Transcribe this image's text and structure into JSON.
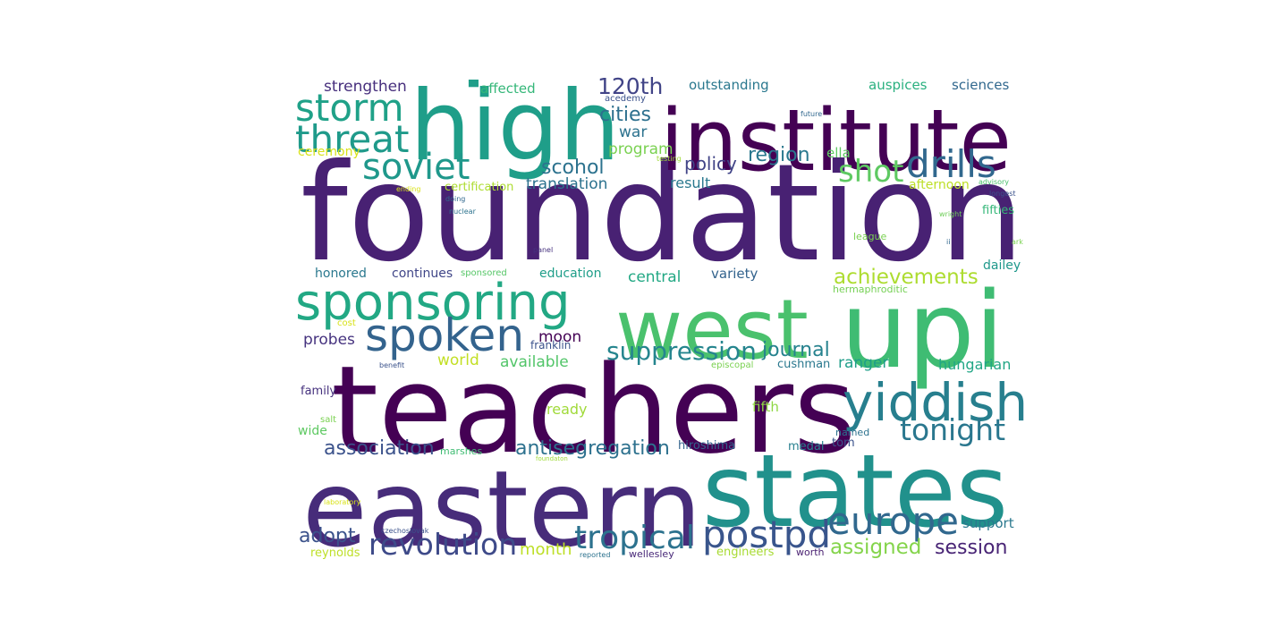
{
  "words": [
    {
      "text": "foundation",
      "color": "#482173"
    },
    {
      "text": "teachers",
      "color": "#440154"
    },
    {
      "text": "eastern",
      "color": "#472c7a"
    },
    {
      "text": "states",
      "color": "#21918c"
    },
    {
      "text": "upi",
      "color": "#3fbc73"
    },
    {
      "text": "west",
      "color": "#4ac16d"
    },
    {
      "text": "institute",
      "color": "#440154"
    },
    {
      "text": "high",
      "color": "#1f9e89"
    },
    {
      "text": "sponsoring",
      "color": "#22a884"
    },
    {
      "text": "yiddish",
      "color": "#277f8e"
    },
    {
      "text": "spoken",
      "color": "#33638d"
    },
    {
      "text": "europe",
      "color": "#31688e"
    },
    {
      "text": "storm",
      "color": "#1fa188"
    },
    {
      "text": "threat",
      "color": "#1f9a8a"
    },
    {
      "text": "drills",
      "color": "#31688e"
    },
    {
      "text": "tropical",
      "color": "#2c728e"
    },
    {
      "text": "postpd",
      "color": "#39558c"
    },
    {
      "text": "soviet",
      "color": "#1f988b"
    },
    {
      "text": "revolution",
      "color": "#3e4a89"
    },
    {
      "text": "tonight",
      "color": "#2a778e"
    },
    {
      "text": "shot",
      "color": "#5ec962"
    },
    {
      "text": "suppression",
      "color": "#25858e"
    },
    {
      "text": "achievements",
      "color": "#addc30"
    },
    {
      "text": "antisegregation",
      "color": "#2d718e"
    },
    {
      "text": "association",
      "color": "#3b528b"
    },
    {
      "text": "120th",
      "color": "#414487"
    },
    {
      "text": "session",
      "color": "#482475"
    },
    {
      "text": "assigned",
      "color": "#84d44b"
    },
    {
      "text": "journal",
      "color": "#26828e"
    },
    {
      "text": "adopt",
      "color": "#3b528b"
    },
    {
      "text": "region",
      "color": "#2a788e"
    },
    {
      "text": "cities",
      "color": "#2d708e"
    },
    {
      "text": "scohol",
      "color": "#2c728e"
    },
    {
      "text": "policy",
      "color": "#414487"
    },
    {
      "text": "month",
      "color": "#bddf26"
    },
    {
      "text": "translation",
      "color": "#2c728e"
    },
    {
      "text": "strengthen",
      "color": "#472f7d"
    },
    {
      "text": "outstanding",
      "color": "#2a788e"
    },
    {
      "text": "auspices",
      "color": "#2ab07f"
    },
    {
      "text": "sciences",
      "color": "#31688e"
    },
    {
      "text": "affected",
      "color": "#35b779"
    },
    {
      "text": "program",
      "color": "#7ad151"
    },
    {
      "text": "moon",
      "color": "#440154"
    },
    {
      "text": "probes",
      "color": "#46337f"
    },
    {
      "text": "hungarian",
      "color": "#21a685"
    },
    {
      "text": "ranger",
      "color": "#1f9e89"
    },
    {
      "text": "world",
      "color": "#c2df23"
    },
    {
      "text": "available",
      "color": "#52c569"
    },
    {
      "text": "ready",
      "color": "#a0da39"
    },
    {
      "text": "war",
      "color": "#2c728e"
    },
    {
      "text": "ella",
      "color": "#5ec962"
    },
    {
      "text": "result",
      "color": "#2a788e"
    },
    {
      "text": "central",
      "color": "#22a884"
    },
    {
      "text": "variety",
      "color": "#33638d"
    },
    {
      "text": "support",
      "color": "#2a788e"
    },
    {
      "text": "dailey",
      "color": "#1f988b"
    },
    {
      "text": "fifties",
      "color": "#35b779"
    },
    {
      "text": "afternoon",
      "color": "#bddf26"
    },
    {
      "text": "certification",
      "color": "#addc30"
    },
    {
      "text": "ceremony",
      "color": "#d8e219"
    },
    {
      "text": "honored",
      "color": "#2a788e"
    },
    {
      "text": "continues",
      "color": "#404688"
    },
    {
      "text": "education",
      "color": "#1f9e89"
    },
    {
      "text": "cushman",
      "color": "#2a788e"
    },
    {
      "text": "fifth",
      "color": "#8fd744"
    },
    {
      "text": "family",
      "color": "#46327e"
    },
    {
      "text": "hiroshima",
      "color": "#33638d"
    },
    {
      "text": "medal",
      "color": "#277f8e"
    },
    {
      "text": "tom",
      "color": "#3b528b"
    },
    {
      "text": "reynolds",
      "color": "#bddf26"
    },
    {
      "text": "engineers",
      "color": "#a8db34"
    },
    {
      "text": "wellesley",
      "color": "#482878"
    },
    {
      "text": "worth",
      "color": "#481f70"
    },
    {
      "text": "sponsored",
      "color": "#56c667"
    },
    {
      "text": "franklin",
      "color": "#3b528b"
    },
    {
      "text": "wide",
      "color": "#5ec962"
    },
    {
      "text": "named",
      "color": "#2c728e"
    },
    {
      "text": "marshes",
      "color": "#3fbc73"
    },
    {
      "text": "salt",
      "color": "#7ad151"
    },
    {
      "text": "cost",
      "color": "#d8e219"
    },
    {
      "text": "league",
      "color": "#7ad151"
    },
    {
      "text": "hermaphroditic",
      "color": "#75d054"
    },
    {
      "text": "episcopal",
      "color": "#7ad151"
    },
    {
      "text": "acedemy",
      "color": "#3b528b"
    },
    {
      "text": "future",
      "color": "#31688e"
    },
    {
      "text": "testing",
      "color": "#a0da39"
    },
    {
      "text": "advisory",
      "color": "#4ac16d"
    },
    {
      "text": "longest",
      "color": "#3b528b"
    },
    {
      "text": "wright",
      "color": "#6ece58"
    },
    {
      "text": "ending",
      "color": "#d8e219"
    },
    {
      "text": "doing",
      "color": "#31688e"
    },
    {
      "text": "nuclear",
      "color": "#2c728e"
    },
    {
      "text": "panel",
      "color": "#46327e"
    },
    {
      "text": "ii",
      "color": "#31688e"
    },
    {
      "text": "ark",
      "color": "#7ad151"
    },
    {
      "text": "benefit",
      "color": "#3b528b"
    },
    {
      "text": "foundaton",
      "color": "#a0da39"
    },
    {
      "text": "laboratory",
      "color": "#d8e219"
    },
    {
      "text": "czechoslovak",
      "color": "#3b528b"
    },
    {
      "text": "reported",
      "color": "#2c728e"
    },
    {
      "text": "▀",
      "color": "#1f9e89"
    }
  ]
}
